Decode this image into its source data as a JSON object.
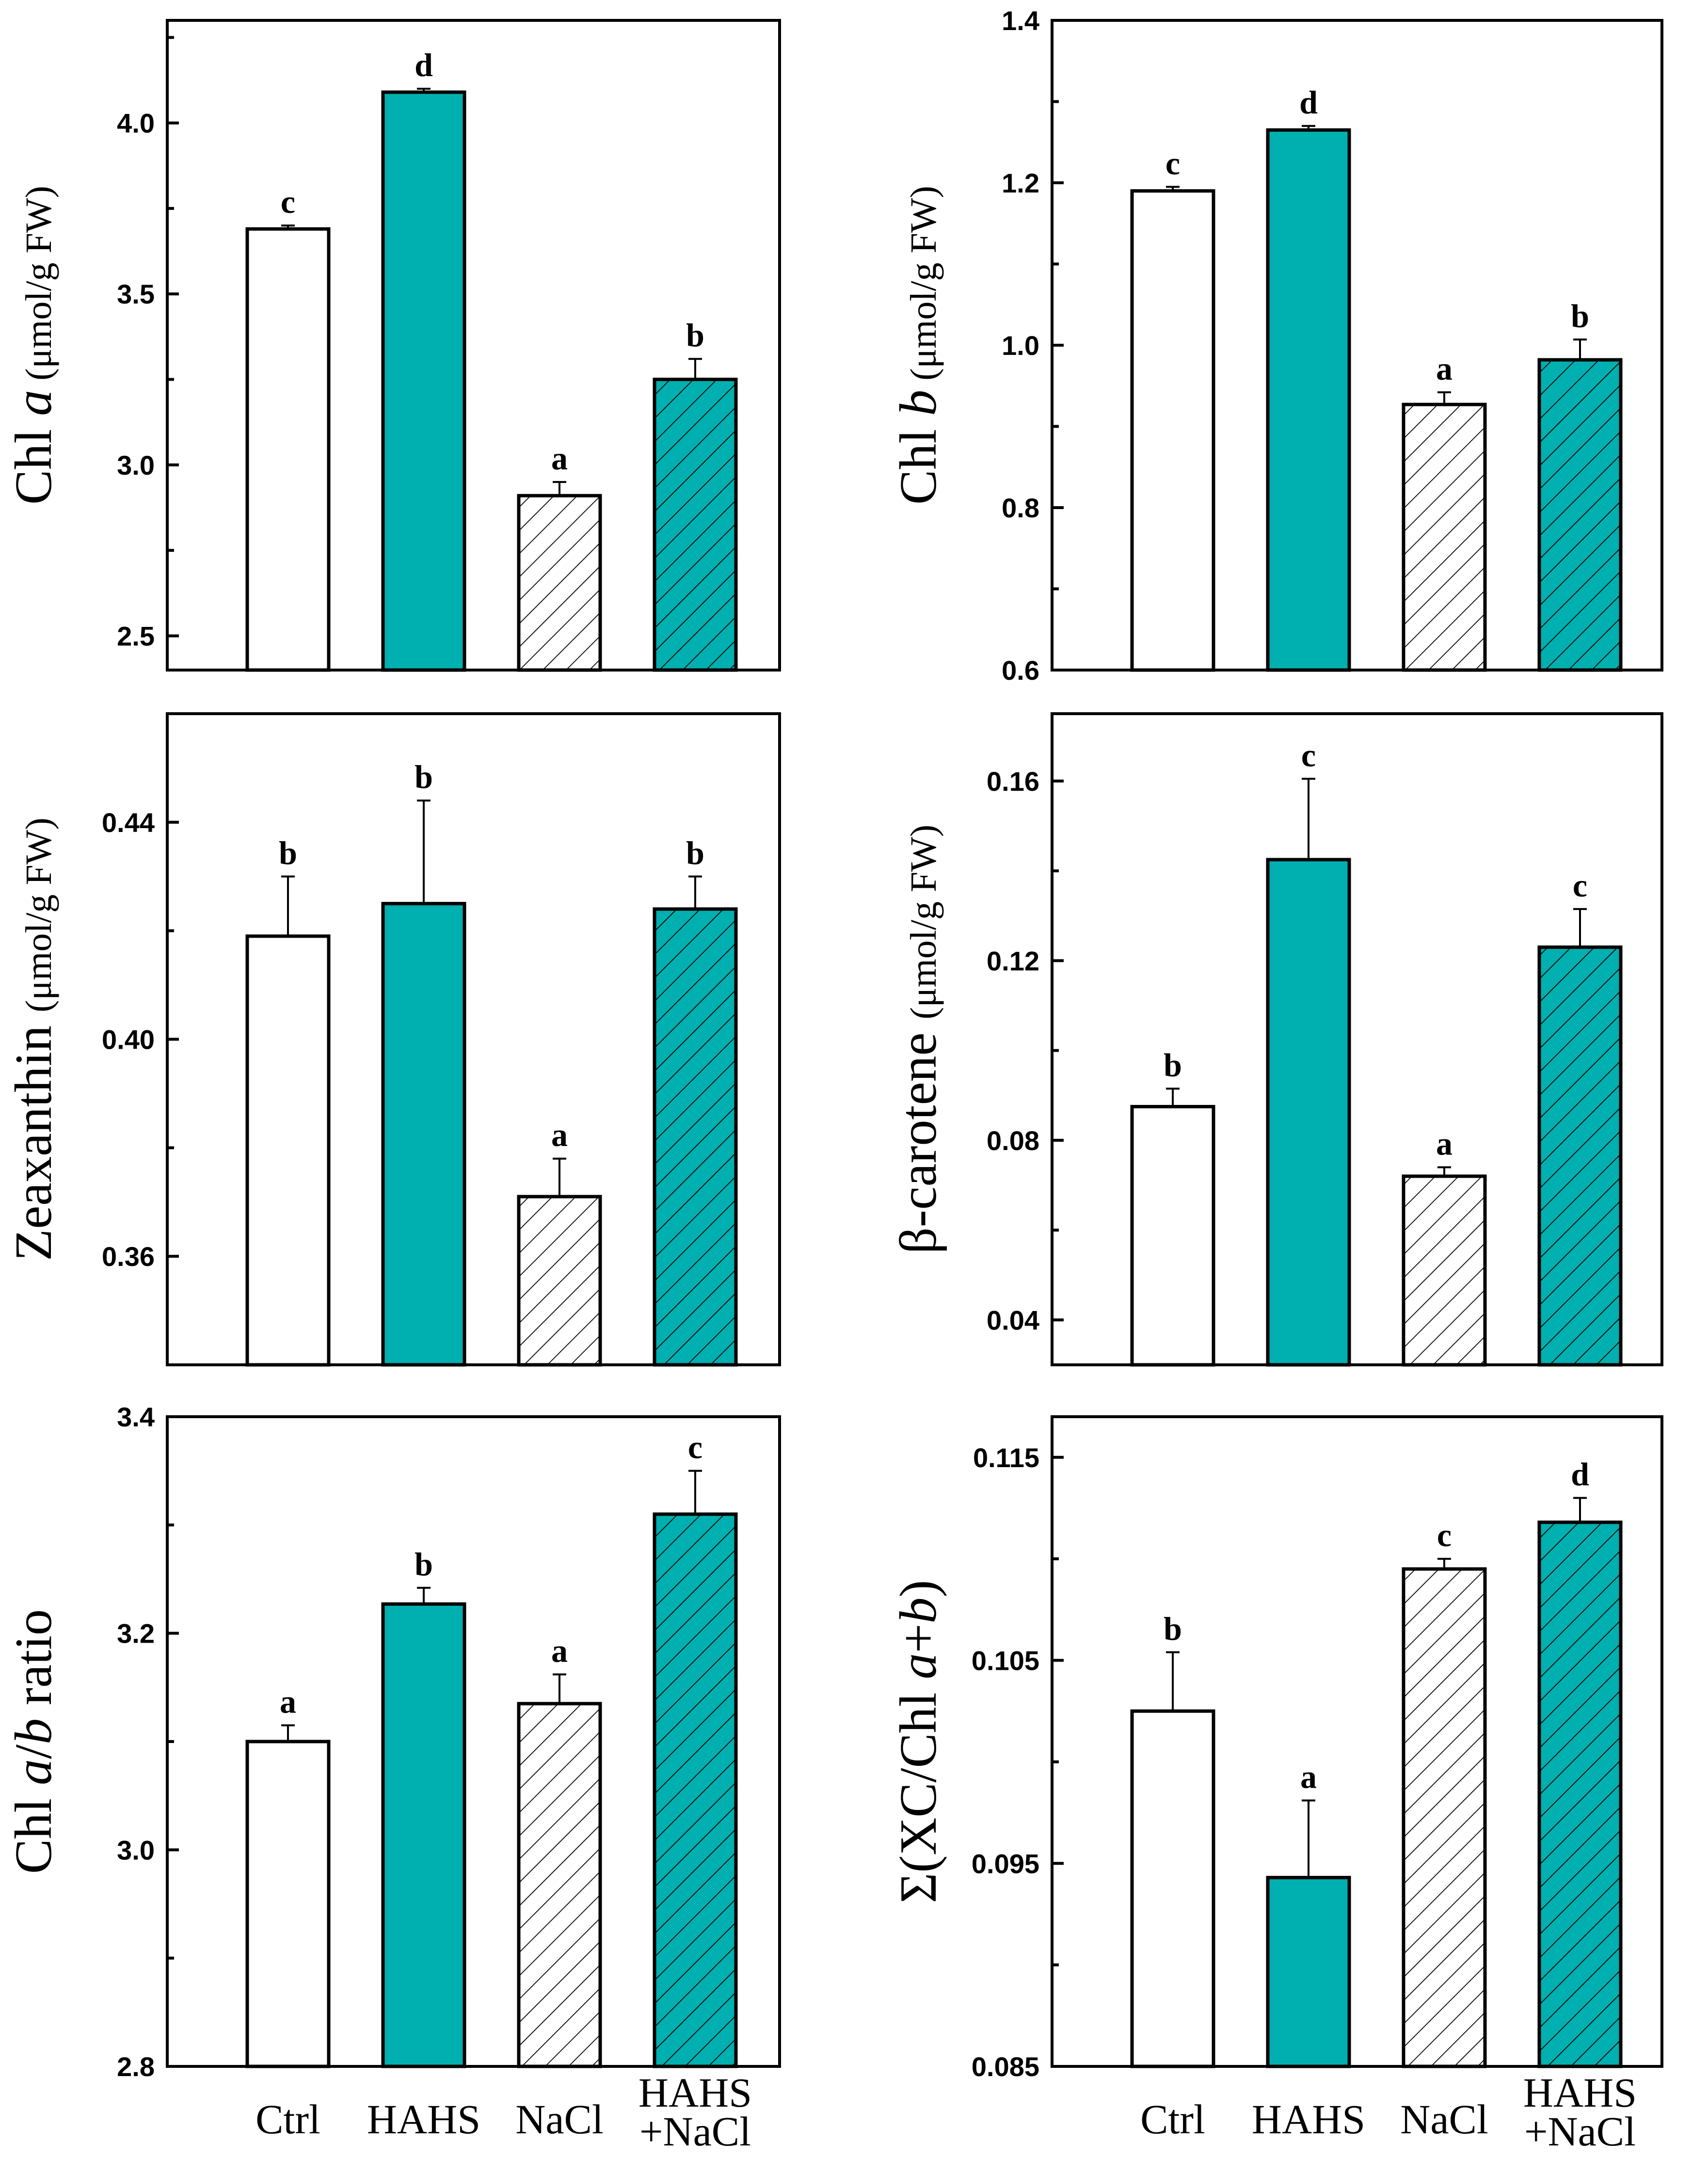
{
  "colors": {
    "teal": "#00AFAF",
    "white": "#FFFFFF",
    "black": "#000000"
  },
  "treatments": [
    {
      "label": "Ctrl",
      "fill": "white",
      "hatch": false
    },
    {
      "label": "HAHS",
      "fill": "teal",
      "hatch": false
    },
    {
      "label": "NaCl",
      "fill": "white",
      "hatch": true
    },
    {
      "label": "HAHS\n+NaCl",
      "fill": "teal",
      "hatch": true
    }
  ],
  "chart_data": [
    {
      "id": "chl-a",
      "type": "bar",
      "ylabel": {
        "parts": [
          {
            "text": "Chl ",
            "style": "normal"
          },
          {
            "text": "a",
            "style": "italic"
          },
          {
            "text": " (μmol/g FW)",
            "style": "unit"
          }
        ]
      },
      "categories": [
        "Ctrl",
        "HAHS",
        "NaCl",
        "HAHS\n+NaCl"
      ],
      "values": [
        3.69,
        4.09,
        2.91,
        3.25
      ],
      "errors": [
        0.01,
        0.01,
        0.04,
        0.06
      ],
      "letters": [
        "c",
        "d",
        "a",
        "b"
      ],
      "ylim": [
        2.4,
        4.3
      ],
      "yticks": [
        "2.5",
        "3.0",
        "3.5",
        "4.0"
      ],
      "ytick_values": [
        2.5,
        3.0,
        3.5,
        4.0
      ],
      "yminor": [
        2.75,
        3.25,
        3.75,
        4.25
      ]
    },
    {
      "id": "chl-b",
      "type": "bar",
      "ylabel": {
        "parts": [
          {
            "text": "Chl ",
            "style": "normal"
          },
          {
            "text": "b",
            "style": "italic"
          },
          {
            "text": " (μmol/g FW)",
            "style": "unit"
          }
        ]
      },
      "categories": [
        "Ctrl",
        "HAHS",
        "NaCl",
        "HAHS\n+NaCl"
      ],
      "values": [
        1.19,
        1.265,
        0.927,
        0.982
      ],
      "errors": [
        0.005,
        0.005,
        0.015,
        0.025
      ],
      "letters": [
        "c",
        "d",
        "a",
        "b"
      ],
      "ylim": [
        0.6,
        1.4
      ],
      "yticks": [
        "0.6",
        "0.8",
        "1.0",
        "1.2",
        "1.4"
      ],
      "ytick_values": [
        0.6,
        0.8,
        1.0,
        1.2,
        1.4
      ],
      "yminor": [
        0.7,
        0.9,
        1.1,
        1.3
      ]
    },
    {
      "id": "zeaxanthin",
      "type": "bar",
      "ylabel": {
        "parts": [
          {
            "text": "Zeaxanthin ",
            "style": "normal"
          },
          {
            "text": "(μmol/g FW)",
            "style": "unit"
          }
        ]
      },
      "categories": [
        "Ctrl",
        "HAHS",
        "NaCl",
        "HAHS\n+NaCl"
      ],
      "values": [
        0.419,
        0.425,
        0.371,
        0.424
      ],
      "errors": [
        0.011,
        0.019,
        0.007,
        0.006
      ],
      "letters": [
        "b",
        "b",
        "a",
        "b"
      ],
      "ylim": [
        0.34,
        0.46
      ],
      "yticks": [
        "0.36",
        "0.40",
        "0.44"
      ],
      "ytick_values": [
        0.36,
        0.4,
        0.44
      ],
      "yminor": [
        0.34,
        0.38,
        0.42,
        0.46
      ]
    },
    {
      "id": "beta-carotene",
      "type": "bar",
      "ylabel": {
        "parts": [
          {
            "text": "β-carotene ",
            "style": "normal"
          },
          {
            "text": "(μmol/g FW)",
            "style": "unit"
          }
        ]
      },
      "categories": [
        "Ctrl",
        "HAHS",
        "NaCl",
        "HAHS\n+NaCl"
      ],
      "values": [
        0.0875,
        0.1425,
        0.072,
        0.123
      ],
      "errors": [
        0.004,
        0.018,
        0.002,
        0.0085
      ],
      "letters": [
        "b",
        "c",
        "a",
        "c"
      ],
      "ylim": [
        0.03,
        0.175
      ],
      "yticks": [
        "0.04",
        "0.08",
        "0.12",
        "0.16"
      ],
      "ytick_values": [
        0.04,
        0.08,
        0.12,
        0.16
      ],
      "yminor": [
        0.06,
        0.1,
        0.14
      ]
    },
    {
      "id": "chl-ab-ratio",
      "type": "bar",
      "ylabel": {
        "parts": [
          {
            "text": "Chl ",
            "style": "normal"
          },
          {
            "text": "a",
            "style": "italic"
          },
          {
            "text": "/",
            "style": "normal"
          },
          {
            "text": "b",
            "style": "italic"
          },
          {
            "text": " ratio",
            "style": "normal"
          }
        ]
      },
      "categories": [
        "Ctrl",
        "HAHS",
        "NaCl",
        "HAHS\n+NaCl"
      ],
      "values": [
        3.1,
        3.227,
        3.135,
        3.31
      ],
      "errors": [
        0.015,
        0.015,
        0.027,
        0.04
      ],
      "letters": [
        "a",
        "b",
        "a",
        "c"
      ],
      "ylim": [
        2.8,
        3.4
      ],
      "yticks": [
        "2.8",
        "3.0",
        "3.2",
        "3.4"
      ],
      "ytick_values": [
        2.8,
        3.0,
        3.2,
        3.4
      ],
      "yminor": [
        2.9,
        3.1,
        3.3
      ]
    },
    {
      "id": "xc-ratio",
      "type": "bar",
      "ylabel": {
        "parts": [
          {
            "text": "Σ(XC/Chl ",
            "style": "normal"
          },
          {
            "text": "a",
            "style": "italic"
          },
          {
            "text": "+",
            "style": "normal"
          },
          {
            "text": "b",
            "style": "italic"
          },
          {
            "text": ")",
            "style": "normal"
          }
        ]
      },
      "categories": [
        "Ctrl",
        "HAHS",
        "NaCl",
        "HAHS\n+NaCl"
      ],
      "values": [
        0.1025,
        0.0943,
        0.1095,
        0.1118
      ],
      "errors": [
        0.0029,
        0.0038,
        0.0005,
        0.0012
      ],
      "letters": [
        "b",
        "a",
        "c",
        "d"
      ],
      "ylim": [
        0.085,
        0.117
      ],
      "yticks": [
        "0.085",
        "0.095",
        "0.105",
        "0.115"
      ],
      "ytick_values": [
        0.085,
        0.095,
        0.105,
        0.115
      ],
      "yminor": [
        0.09,
        0.1,
        0.11
      ]
    }
  ]
}
